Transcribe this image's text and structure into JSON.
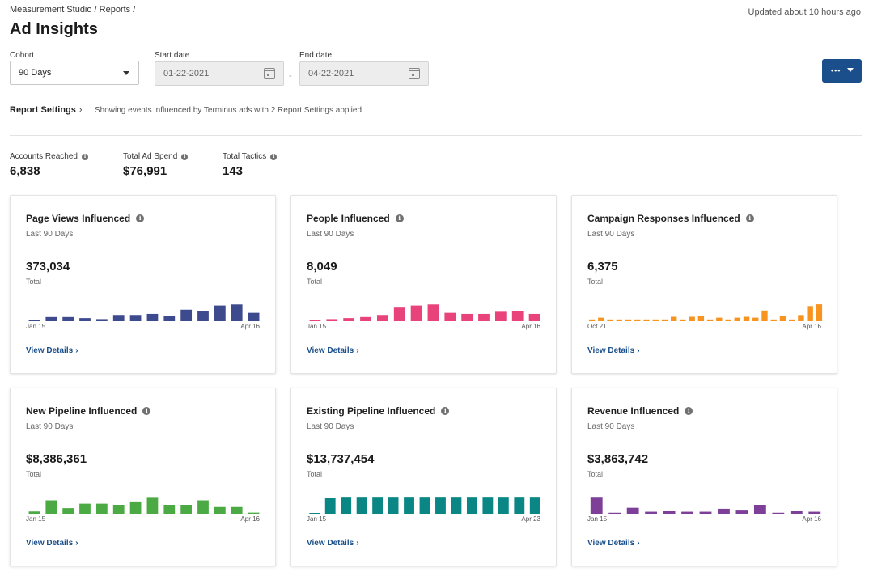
{
  "header": {
    "breadcrumb": "Measurement Studio / Reports /",
    "title": "Ad Insights",
    "updated": "Updated about 10 hours ago"
  },
  "filters": {
    "cohort_label": "Cohort",
    "cohort_value": "90 Days",
    "start_label": "Start date",
    "start_value": "01-22-2021",
    "end_label": "End date",
    "end_value": "04-22-2021",
    "separator": "-",
    "menu_label": "•••"
  },
  "report_settings": {
    "label": "Report Settings",
    "chevron": "›",
    "description": "Showing events influenced by Terminus ads with 2 Report Settings applied"
  },
  "kpis": [
    {
      "label": "Accounts Reached",
      "value": "6,838"
    },
    {
      "label": "Total Ad Spend",
      "value": "$76,991"
    },
    {
      "label": "Total Tactics",
      "value": "143"
    }
  ],
  "info_glyph": "i",
  "cards": [
    {
      "title": "Page Views Influenced",
      "subtitle": "Last 90 Days",
      "value": "373,034",
      "total_label": "Total",
      "axis_start": "Jan 15",
      "axis_end": "Apr 16",
      "link": "View Details",
      "chevron": "›",
      "color": "#3e4a8e"
    },
    {
      "title": "People Influenced",
      "subtitle": "Last 90 Days",
      "value": "8,049",
      "total_label": "Total",
      "axis_start": "Jan 15",
      "axis_end": "Apr 16",
      "link": "View Details",
      "chevron": "›",
      "color": "#e8437a"
    },
    {
      "title": "Campaign Responses Influenced",
      "subtitle": "Last 90 Days",
      "value": "6,375",
      "total_label": "Total",
      "axis_start": "Oct 21",
      "axis_end": "Apr 16",
      "link": "View Details",
      "chevron": "›",
      "color": "#f7931e"
    },
    {
      "title": "New Pipeline Influenced",
      "subtitle": "Last 90 Days",
      "value": "$8,386,361",
      "total_label": "Total",
      "axis_start": "Jan 15",
      "axis_end": "Apr 16",
      "link": "View Details",
      "chevron": "›",
      "color": "#4caa44"
    },
    {
      "title": "Existing Pipeline Influenced",
      "subtitle": "Last 90 Days",
      "value": "$13,737,454",
      "total_label": "Total",
      "axis_start": "Jan 15",
      "axis_end": "Apr 23",
      "link": "View Details",
      "chevron": "›",
      "color": "#0a8784"
    },
    {
      "title": "Revenue Influenced",
      "subtitle": "Last 90 Days",
      "value": "$3,863,742",
      "total_label": "Total",
      "axis_start": "Jan 15",
      "axis_end": "Apr 16",
      "link": "View Details",
      "chevron": "›",
      "color": "#7d3f98"
    }
  ],
  "chart_data": [
    {
      "type": "bar",
      "title": "Page Views Influenced",
      "categories_start": "Jan 15",
      "categories_end": "Apr 16",
      "values": [
        1,
        4,
        4,
        3,
        2,
        6,
        6,
        7,
        5,
        11,
        10,
        15,
        16,
        8
      ],
      "ylim": [
        0,
        17
      ]
    },
    {
      "type": "bar",
      "title": "People Influenced",
      "categories_start": "Jan 15",
      "categories_end": "Apr 16",
      "values": [
        1,
        2,
        3,
        4,
        6,
        13,
        15,
        16,
        8,
        7,
        7,
        9,
        10,
        7
      ],
      "ylim": [
        0,
        17
      ]
    },
    {
      "type": "bar",
      "title": "Campaign Responses Influenced",
      "categories_start": "Oct 21",
      "categories_end": "Apr 16",
      "values": [
        2,
        4,
        2,
        2,
        2,
        2,
        2,
        2,
        2,
        5,
        2,
        5,
        6,
        2,
        4,
        2,
        4,
        5,
        4,
        12,
        2,
        6,
        2,
        7,
        17,
        19
      ],
      "ylim": [
        0,
        20
      ]
    },
    {
      "type": "bar",
      "title": "New Pipeline Influenced",
      "categories_start": "Jan 15",
      "categories_end": "Apr 16",
      "values": [
        2,
        12,
        5,
        9,
        9,
        8,
        11,
        15,
        8,
        8,
        12,
        6,
        6,
        1
      ],
      "ylim": [
        0,
        16
      ]
    },
    {
      "type": "bar",
      "title": "Existing Pipeline Influenced",
      "categories_start": "Jan 15",
      "categories_end": "Apr 23",
      "values": [
        0,
        17,
        18,
        18,
        18,
        18,
        18,
        18,
        18,
        18,
        18,
        18,
        18,
        18,
        18
      ],
      "ylim": [
        0,
        19
      ]
    },
    {
      "type": "bar",
      "title": "Revenue Influenced",
      "categories_start": "Jan 15",
      "categories_end": "Apr 16",
      "values": [
        17,
        1,
        6,
        2,
        3,
        2,
        2,
        5,
        4,
        9,
        1,
        3,
        2
      ],
      "ylim": [
        0,
        18
      ]
    }
  ]
}
